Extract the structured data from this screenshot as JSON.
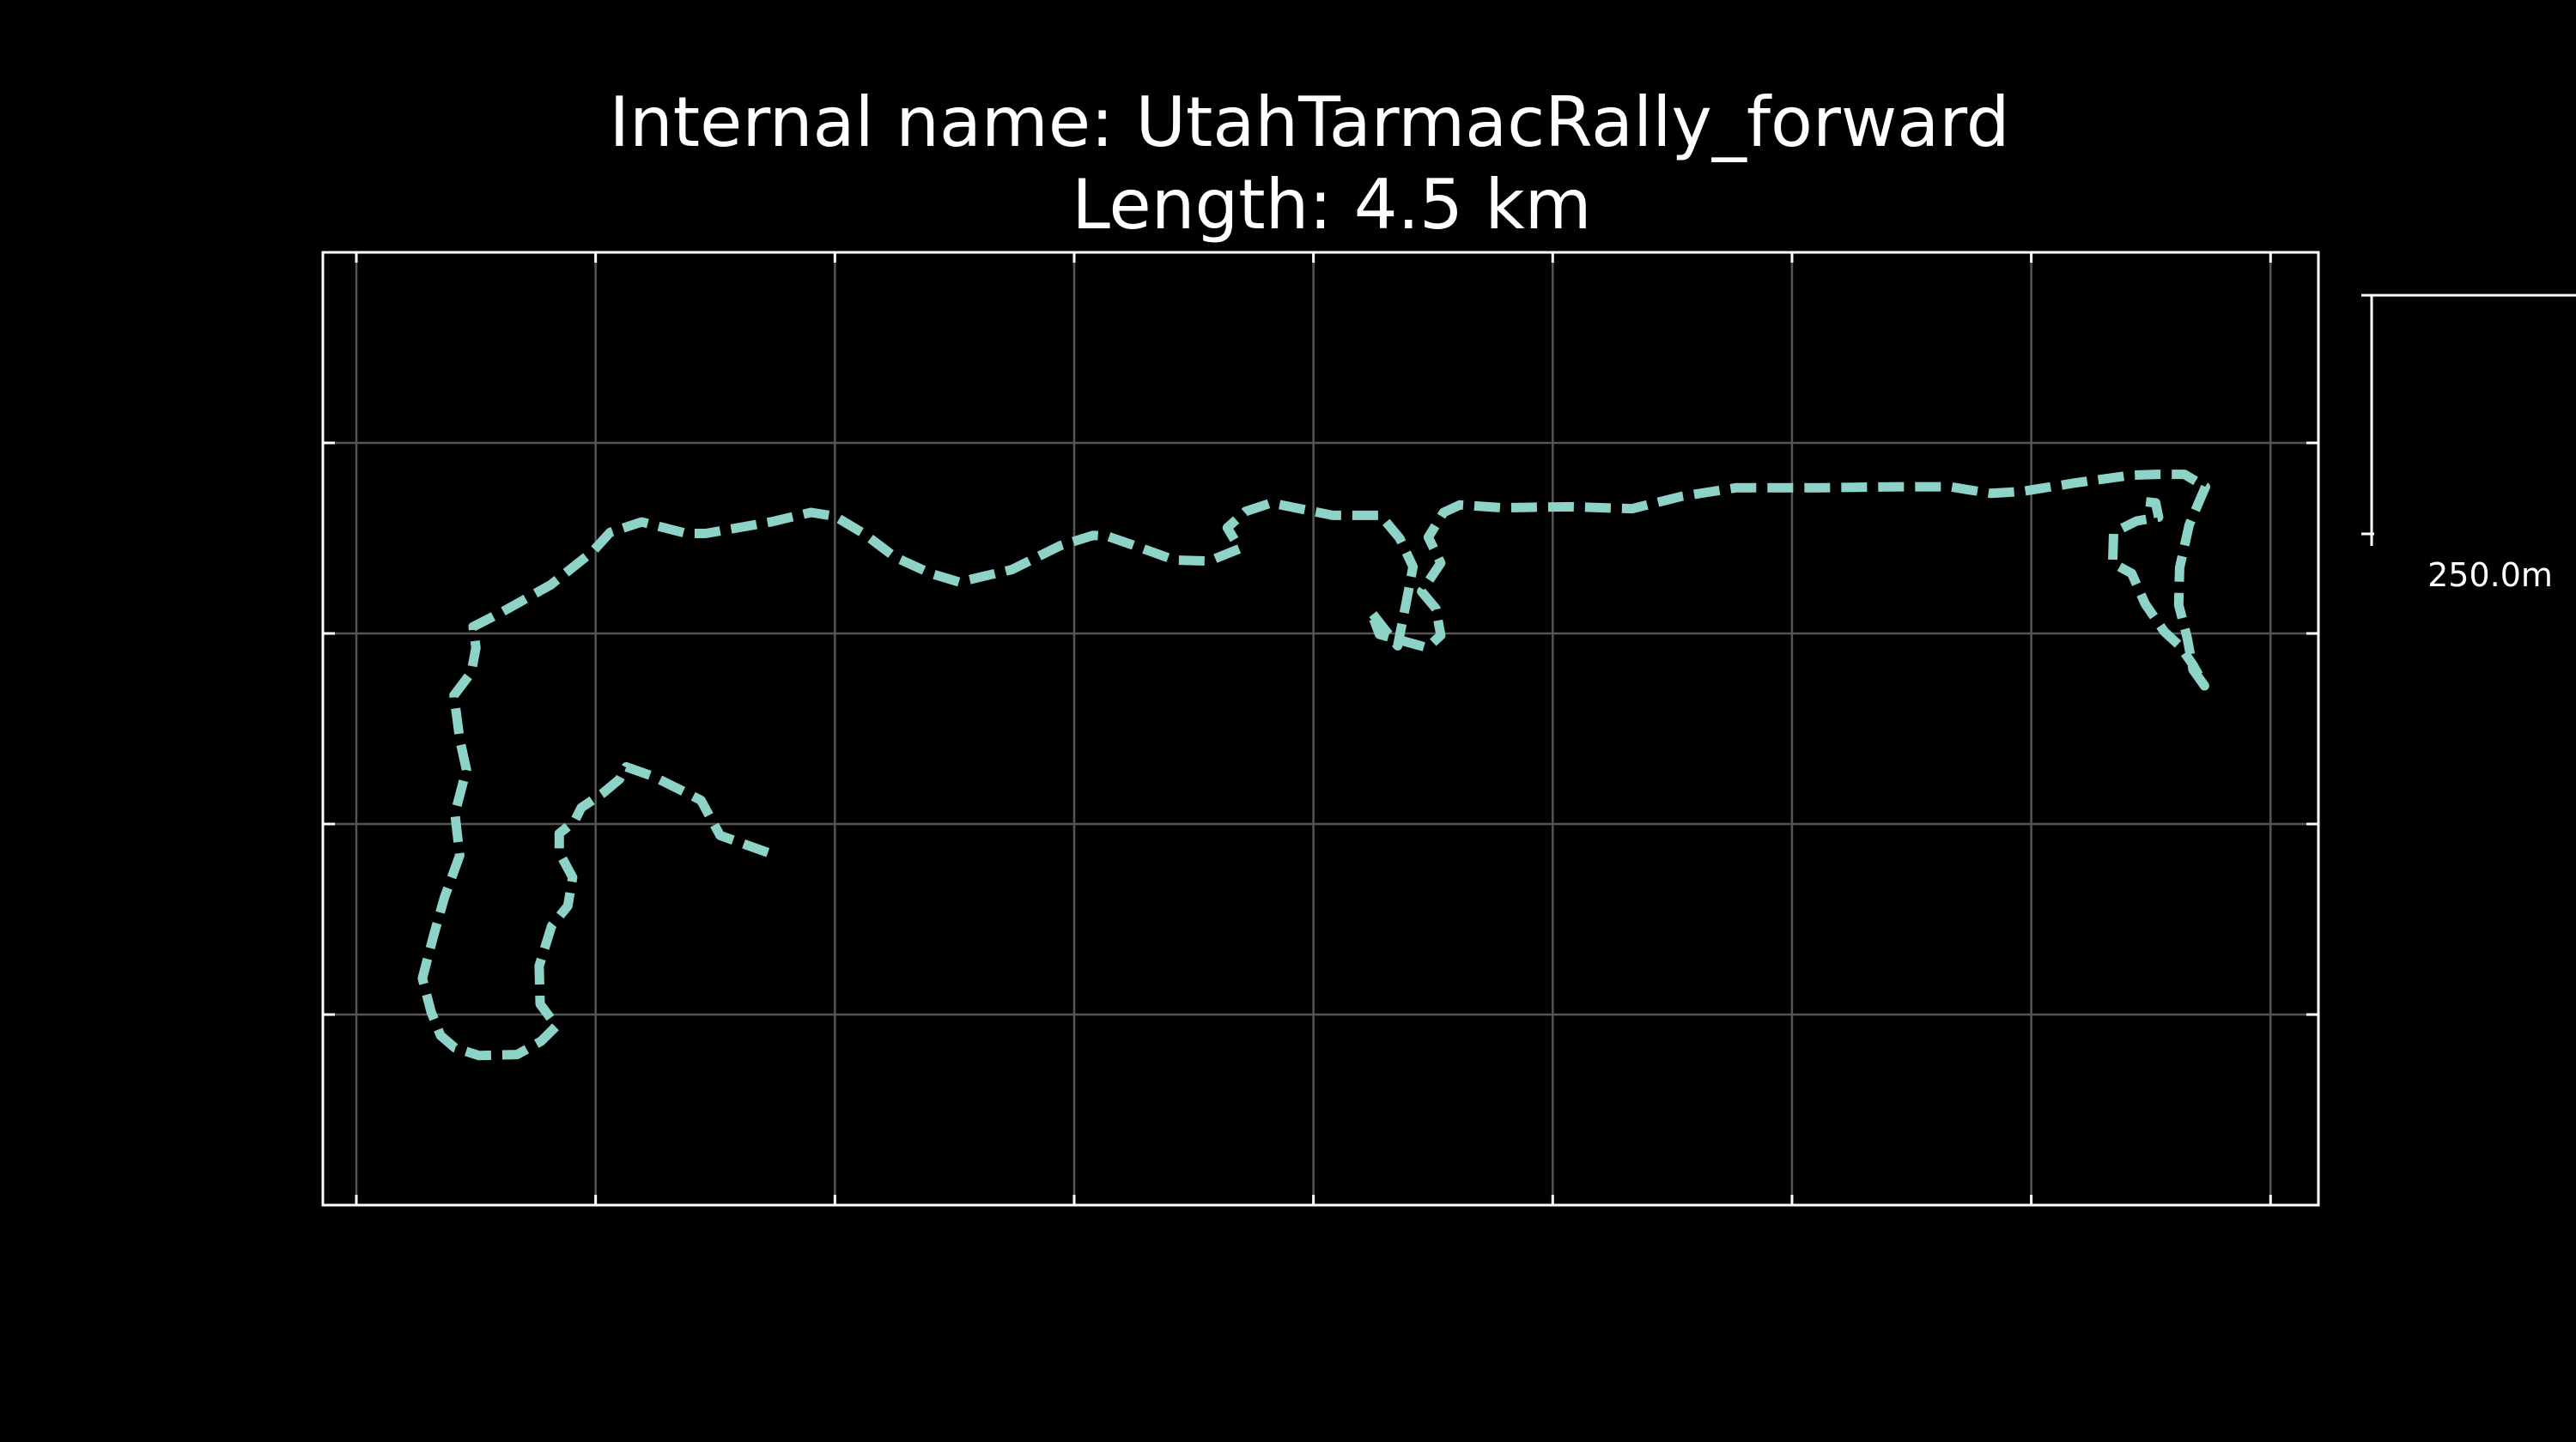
{
  "chart_data": {
    "type": "line",
    "title": "Internal name: UtahTarmacRally_forward",
    "subtitle": "Length: 4.5 km",
    "xlabel": "",
    "ylabel": "",
    "xlim": [
      -35,
      2050
    ],
    "ylim": [
      -1000,
      0
    ],
    "x_grid_ticks": [
      0,
      250,
      500,
      750,
      1000,
      1250,
      1500,
      1750,
      2000
    ],
    "y_grid_ticks": [
      -800,
      -600,
      -400,
      -200,
      0
    ],
    "grid": true,
    "line_style": "dashed",
    "colors": {
      "background": "#000000",
      "track": "#8dd3c7",
      "frame": "#ffffff",
      "grid": "#555555",
      "text": "#ffffff"
    },
    "scale_bar": {
      "label": "250.0m",
      "length_m": 250
    },
    "series": [
      {
        "x": [
          430,
          380,
          360,
          340,
          310,
          282,
          275,
          257,
          235,
          228,
          212,
          212,
          226,
          221,
          204,
          191,
          192,
          209,
          193,
          168,
          128,
          103,
          88,
          78,
          69,
          81,
          92,
          108,
          103,
          115,
          108,
          102,
          120,
          125,
          122,
          153,
          203,
          247,
          265,
          298,
          345,
          365,
          433,
          475,
          500,
          530,
          563,
          600,
          630,
          685,
          735,
          770,
          785,
          808,
          855,
          891,
          923,
          910,
          929,
          956,
          1020,
          1070,
          1090,
          1104,
          1097,
          1088,
          1060,
          1069,
          1119,
          1133,
          1128,
          1113,
          1133,
          1120,
          1136,
          1153,
          1197,
          1268,
          1333,
          1385,
          1442,
          1530,
          1612,
          1665,
          1708,
          1740,
          1796,
          1854,
          1882,
          1910,
          1932,
          1915,
          1905,
          1904,
          1913,
          1919,
          1931,
          1919,
          1905,
          1889,
          1869,
          1855,
          1835,
          1836,
          1860,
          1883,
          1880,
          1863
        ],
        "y": [
          -630,
          -612,
          -575,
          -565,
          -550,
          -540,
          -553,
          -568,
          -583,
          -597,
          -610,
          -630,
          -656,
          -686,
          -707,
          -749,
          -789,
          -812,
          -828,
          -842,
          -843,
          -835,
          -822,
          -797,
          -762,
          -716,
          -677,
          -633,
          -589,
          -543,
          -511,
          -465,
          -441,
          -415,
          -393,
          -377,
          -349,
          -314,
          -294,
          -283,
          -295,
          -295,
          -283,
          -273,
          -277,
          -295,
          -320,
          -337,
          -346,
          -333,
          -308,
          -297,
          -298,
          -306,
          -323,
          -324,
          -311,
          -289,
          -272,
          -263,
          -276,
          -276,
          -300,
          -330,
          -367,
          -413,
          -377,
          -401,
          -415,
          -402,
          -374,
          -356,
          -326,
          -299,
          -273,
          -265,
          -268,
          -267,
          -269,
          -256,
          -247,
          -247,
          -246,
          -246,
          -253,
          -251,
          -242,
          -234,
          -233,
          -233,
          -246,
          -286,
          -331,
          -370,
          -405,
          -438,
          -455,
          -433,
          -413,
          -398,
          -369,
          -337,
          -326,
          -294,
          -282,
          -278,
          -263,
          -261
        ]
      }
    ]
  }
}
